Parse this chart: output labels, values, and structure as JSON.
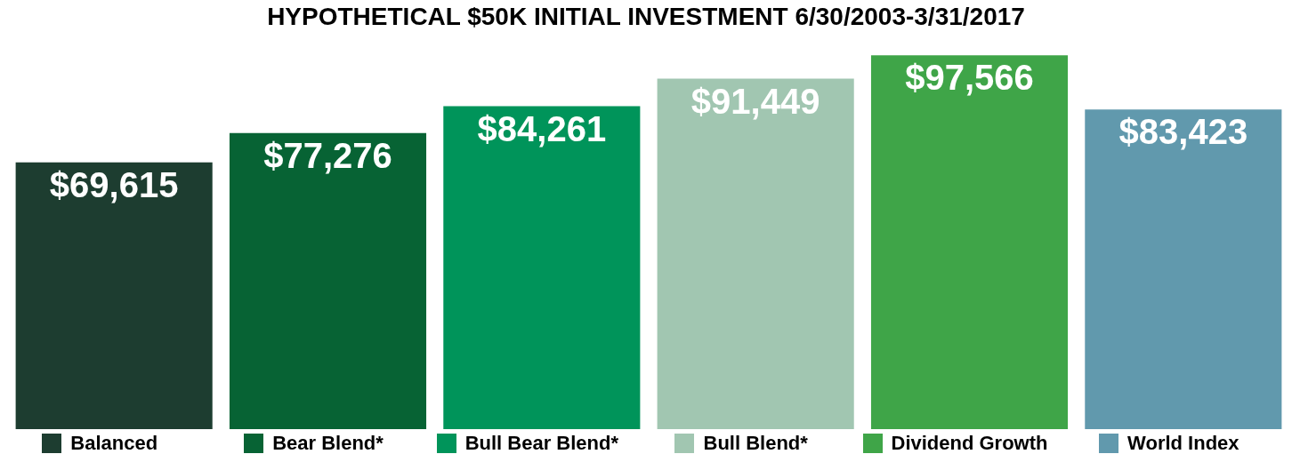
{
  "chart_data": {
    "type": "bar",
    "title": "HYPOTHETICAL $50K INITIAL INVESTMENT 6/30/2003-3/31/2017",
    "categories": [
      "Balanced",
      "Bear Blend*",
      "Bull Bear Blend*",
      "Bull Blend*",
      "Dividend Growth",
      "World Index"
    ],
    "values": [
      69615,
      77276,
      84261,
      91449,
      97566,
      83423
    ],
    "colors": [
      "#1d3d30",
      "#076334",
      "#00945a",
      "#a1c6b1",
      "#3fa548",
      "#6199ad"
    ],
    "value_labels": [
      "$69,615",
      "$77,276",
      "$84,261",
      "$91,449",
      "$97,566",
      "$83,423"
    ],
    "grid": false
  }
}
